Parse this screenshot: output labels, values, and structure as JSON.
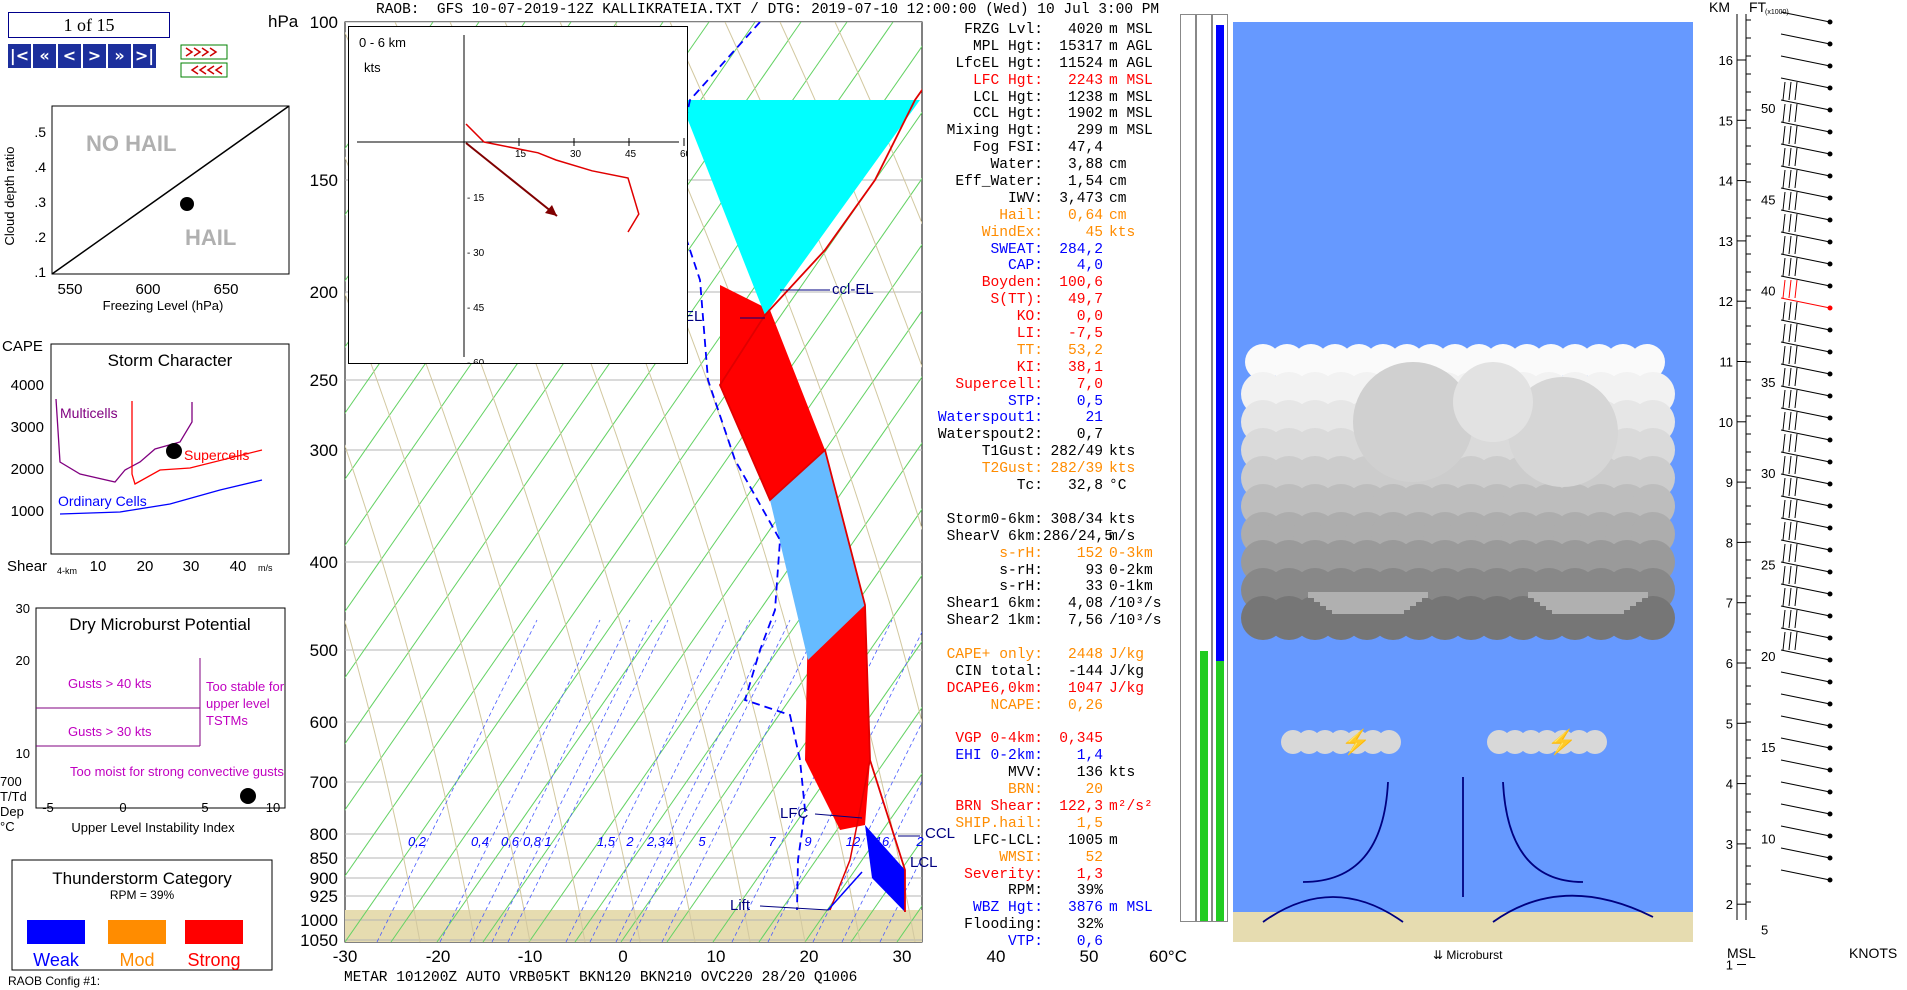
{
  "header": {
    "text": "RAOB:  GFS 10-07-2019-12Z KALLIKRATEIA.TXT / DTG: 2019-07-10 12:00:00 (Wed) 10 Jul 3:00 PM"
  },
  "metar": {
    "text": "METAR 101200Z AUTO VRB05KT BKN120 BKN210 OVC220 28/20 Q1006"
  },
  "nav": {
    "counter": "1 of 15",
    "buttons": [
      "|<",
      "«",
      "<",
      ">",
      "»",
      ">|"
    ]
  },
  "config_label": "RAOB Config #1:",
  "hail_chart": {
    "ylabel": "Cloud depth ratio",
    "xlabel": "Freezing Level (hPa)",
    "no_hail": "NO HAIL",
    "hail": "HAIL",
    "y_ticks": [
      ".5",
      ".4",
      ".3",
      ".2",
      ".1"
    ],
    "x_ticks": [
      "550",
      "600",
      "650"
    ]
  },
  "storm_chart": {
    "title": "Storm Character",
    "y_title": "CAPE",
    "y_ticks": [
      "4000",
      "3000",
      "2000",
      "1000"
    ],
    "x_title": "Shear",
    "x_sub": "4-km",
    "x_ticks": [
      "10",
      "20",
      "30",
      "40"
    ],
    "x_unit": "m/s",
    "labels": {
      "multicells": "Multicells",
      "supercells": "Supercells",
      "ordinary": "Ordinary Cells"
    }
  },
  "microburst": {
    "title": "Dry Microburst Potential",
    "y_ticks": [
      "30",
      "20",
      "10"
    ],
    "gusts40": "Gusts > 40 kts",
    "gusts30": "Gusts > 30 kts",
    "too_moist": "Too moist for strong convective gusts",
    "too_stable": "Too stable for upper level TSTMs",
    "left_label": [
      "700",
      "T/Td",
      "Dep",
      "°C"
    ],
    "x_ticks": [
      "-5",
      "0",
      "5",
      "10"
    ],
    "xlabel": "Upper Level Instability Index"
  },
  "ts_category": {
    "title": "Thunderstorm Category",
    "rpm": "RPM = 39%",
    "weak": "Weak",
    "mod": "Mod",
    "strong": "Strong"
  },
  "hodograph": {
    "title": "0 - 6 km",
    "unit": "kts",
    "x_ticks": [
      "15",
      "30",
      "45",
      "60"
    ],
    "y_ticks": [
      "- 15",
      "- 30",
      "- 45",
      "- 60"
    ]
  },
  "skewt": {
    "hpa_label": "hPa",
    "pressure_ticks": [
      "100",
      "150",
      "200",
      "250",
      "300",
      "400",
      "500",
      "600",
      "700",
      "800",
      "850",
      "900",
      "925",
      "1000",
      "1050"
    ],
    "temp_ticks": [
      "-30",
      "-20",
      "-10",
      "0",
      "10",
      "20",
      "30",
      "40",
      "50",
      "60°C"
    ],
    "mixing_ticks": [
      "0,2",
      "0,4",
      "0,6",
      "0,8",
      "1",
      "1,5",
      "2",
      "2,3",
      "4",
      "5",
      "7",
      "9",
      "12",
      "16",
      "2"
    ],
    "labels": {
      "ccl_el": "ccl-EL",
      "el": "EL",
      "lfc": "LFC",
      "ccl": "CCL",
      "lcl": "LCL",
      "lift": "Lift"
    }
  },
  "indices": [
    {
      "label": "FRZG Lvl:",
      "value": "4020",
      "unit": "m MSL",
      "color": "#000000"
    },
    {
      "label": "MPL Hgt:",
      "value": "15317",
      "unit": "m AGL",
      "color": "#000000"
    },
    {
      "label": "LfcEL Hgt:",
      "value": "11524",
      "unit": "m AGL",
      "color": "#000000"
    },
    {
      "label": "LFC Hgt:",
      "value": "2243",
      "unit": "m MSL",
      "color": "#ff0000"
    },
    {
      "label": "LCL Hgt:",
      "value": "1238",
      "unit": "m MSL",
      "color": "#000000"
    },
    {
      "label": "CCL Hgt:",
      "value": "1902",
      "unit": "m MSL",
      "color": "#000000"
    },
    {
      "label": "Mixing Hgt:",
      "value": "299",
      "unit": "m MSL",
      "color": "#000000"
    },
    {
      "label": "Fog FSI:",
      "value": "47,4",
      "unit": "",
      "color": "#000000"
    },
    {
      "label": "Water:",
      "value": "3,88",
      "unit": "cm",
      "color": "#000000"
    },
    {
      "label": "Eff_Water:",
      "value": "1,54",
      "unit": "cm",
      "color": "#000000"
    },
    {
      "label": "IWV:",
      "value": "3,473",
      "unit": "cm",
      "color": "#000000"
    },
    {
      "label": "Hail:",
      "value": "0,64",
      "unit": "cm",
      "color": "#ff8c00"
    },
    {
      "label": "WindEx:",
      "value": "45",
      "unit": "kts",
      "color": "#ff8c00"
    },
    {
      "label": "SWEAT:",
      "value": "284,2",
      "unit": "",
      "color": "#0000ff"
    },
    {
      "label": "CAP:",
      "value": "4,0",
      "unit": "",
      "color": "#0000ff"
    },
    {
      "label": "Boyden:",
      "value": "100,6",
      "unit": "",
      "color": "#ff0000"
    },
    {
      "label": "S(TT):",
      "value": "49,7",
      "unit": "",
      "color": "#ff0000"
    },
    {
      "label": "KO:",
      "value": "0,0",
      "unit": "",
      "color": "#ff0000"
    },
    {
      "label": "LI:",
      "value": "-7,5",
      "unit": "",
      "color": "#ff0000"
    },
    {
      "label": "TT:",
      "value": "53,2",
      "unit": "",
      "color": "#ff8c00"
    },
    {
      "label": "KI:",
      "value": "38,1",
      "unit": "",
      "color": "#ff0000"
    },
    {
      "label": "Supercell:",
      "value": "7,0",
      "unit": "",
      "color": "#ff0000"
    },
    {
      "label": "STP:",
      "value": "0,5",
      "unit": "",
      "color": "#0000ff"
    },
    {
      "label": "Waterspout1:",
      "value": "21",
      "unit": "",
      "color": "#0000ff"
    },
    {
      "label": "Waterspout2:",
      "value": "0,7",
      "unit": "",
      "color": "#000000"
    },
    {
      "label": "T1Gust:",
      "value": "282/49",
      "unit": "kts",
      "color": "#000000"
    },
    {
      "label": "T2Gust:",
      "value": "282/39",
      "unit": "kts",
      "color": "#ff8c00"
    },
    {
      "label": "Tc:",
      "value": "32,8",
      "unit": "°C",
      "color": "#000000"
    },
    {
      "gap": true
    },
    {
      "label": "Storm0-6km:",
      "value": "308/34",
      "unit": "kts",
      "color": "#000000"
    },
    {
      "label": "ShearV 6km:",
      "value": "286/24,5",
      "unit": "m/s",
      "color": "#000000"
    },
    {
      "label": "s-rH:",
      "value": "152",
      "unit": "0-3km",
      "color": "#ff8c00"
    },
    {
      "label": "s-rH:",
      "value": "93",
      "unit": "0-2km",
      "color": "#000000"
    },
    {
      "label": "s-rH:",
      "value": "33",
      "unit": "0-1km",
      "color": "#000000"
    },
    {
      "label": "Shear1 6km:",
      "value": "4,08",
      "unit": "/10³/s",
      "color": "#000000"
    },
    {
      "label": "Shear2 1km:",
      "value": "7,56",
      "unit": "/10³/s",
      "color": "#000000"
    },
    {
      "gap": true
    },
    {
      "label": "CAPE+ only:",
      "value": "2448",
      "unit": "J/kg",
      "color": "#ff8c00"
    },
    {
      "label": "CIN total:",
      "value": "-144",
      "unit": "J/kg",
      "color": "#000000"
    },
    {
      "label": "DCAPE6,0km:",
      "value": "1047",
      "unit": "J/kg",
      "color": "#ff0000"
    },
    {
      "label": "NCAPE:",
      "value": "0,26",
      "unit": "",
      "color": "#ff8c00"
    },
    {
      "gap": true
    },
    {
      "label": "VGP 0-4km:",
      "value": "0,345",
      "unit": "",
      "color": "#ff0000"
    },
    {
      "label": "EHI 0-2km:",
      "value": "1,4",
      "unit": "",
      "color": "#0000ff"
    },
    {
      "label": "MVV:",
      "value": "136",
      "unit": "kts",
      "color": "#000000"
    },
    {
      "label": "BRN:",
      "value": "20",
      "unit": "",
      "color": "#ff8c00"
    },
    {
      "label": "BRN Shear:",
      "value": "122,3",
      "unit": "m²/s²",
      "color": "#ff0000"
    },
    {
      "label": "SHIP.hail:",
      "value": "1,5",
      "unit": "",
      "color": "#ff8c00"
    },
    {
      "label": "LFC-LCL:",
      "value": "1005",
      "unit": "m",
      "color": "#000000"
    },
    {
      "label": "WMSI:",
      "value": "52",
      "unit": "",
      "color": "#ff8c00"
    },
    {
      "label": "Severity:",
      "value": "1,3",
      "unit": "",
      "color": "#ff0000"
    },
    {
      "label": "RPM:",
      "value": "39%",
      "unit": "",
      "color": "#000000"
    },
    {
      "label": "WBZ Hgt:",
      "value": "3876",
      "unit": "m MSL",
      "color": "#0000ff"
    },
    {
      "label": "Flooding:",
      "value": "32%",
      "unit": "",
      "color": "#000000"
    },
    {
      "label": "VTP:",
      "value": "0,6",
      "unit": "",
      "color": "#0000ff"
    }
  ],
  "cloud_panel": {
    "microburst_label": "Microburst"
  },
  "km_scale": {
    "km_title": "KM",
    "ft_title": "FT",
    "ft_sub": "(x1000)",
    "km_ticks": [
      "16",
      "15",
      "14",
      "13",
      "12",
      "11",
      "10",
      "9",
      "8",
      "7",
      "6",
      "5",
      "4",
      "3",
      "2",
      "1"
    ],
    "ft_ticks": [
      "50",
      "45",
      "40",
      "35",
      "30",
      "25",
      "20",
      "15",
      "10",
      "5"
    ],
    "msl": "MSL",
    "knots": "KNOTS"
  },
  "chart_data": {
    "type": "line",
    "title": "",
    "xlabel": "",
    "ylabel": "hPa",
    "temperature_profile": {
      "name": "Temperature",
      "pressure": [
        1000,
        925,
        850,
        800,
        700,
        600,
        500,
        400,
        300,
        250,
        200,
        150,
        100
      ],
      "temp_c": [
        31,
        26,
        22,
        20,
        13,
        5,
        -5,
        -14,
        -31,
        -40,
        -52,
        -56,
        -58
      ]
    },
    "dewpoint_profile": {
      "name": "Dewpoint",
      "pressure": [
        1000,
        925,
        850,
        800,
        700,
        600,
        500,
        400,
        300,
        250,
        200,
        150,
        100
      ],
      "dewpoint_c": [
        20,
        17,
        14,
        12,
        2,
        -5,
        -20,
        -30,
        -45,
        -55,
        -65,
        -75,
        -85
      ]
    },
    "hodograph": {
      "u_kts": [
        0,
        5,
        20,
        25,
        35,
        45,
        48,
        45
      ],
      "v_kts": [
        5,
        0,
        -3,
        -5,
        -8,
        -10,
        -20,
        -25
      ]
    },
    "pressure_axis_hpa": [
      100,
      1050
    ],
    "temperature_axis_c": [
      -30,
      60
    ]
  }
}
